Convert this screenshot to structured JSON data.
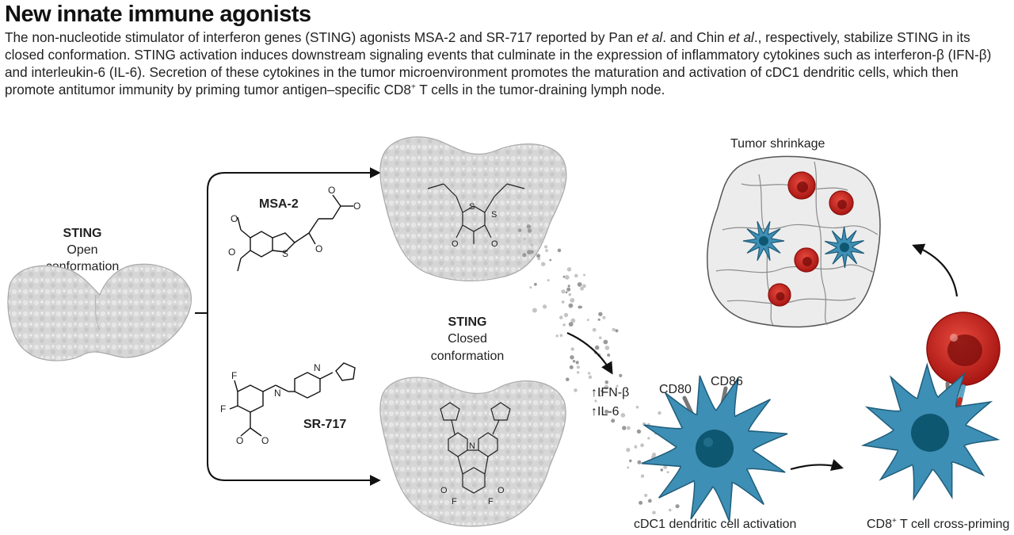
{
  "title": "New innate immune agonists",
  "caption": {
    "p1": "The non-nucleotide stimulator of interferon genes (STING) agonists MSA-2 and SR-717 reported by Pan ",
    "etal1": "et al",
    "p2": ". and Chin ",
    "etal2": "et al",
    "p3": "., respectively, stabilize STING in its closed conformation. STING activation induces downstream signaling events that culminate in the expression of inflammatory cytokines such as interferon-β (IFN-β) and interleukin-6 (IL-6). Secretion of these cytokines in the tumor microenvironment promotes the maturation and activation of cDC1 dendritic cells, which then promote antitumor immunity by priming tumor antigen–specific CD8",
    "sup": "+",
    "p4": " T cells in the tumor-draining lymph node."
  },
  "labels": {
    "sting_open": {
      "line1": "STING",
      "line2": "Open",
      "line3": "conformation"
    },
    "msa2": "MSA-2",
    "sr717": "SR-717",
    "sting_closed": {
      "line1": "STING",
      "line2": "Closed",
      "line3": "conformation"
    },
    "ifn": "↑IFN-β",
    "il6": "↑IL-6",
    "cd80": "CD80",
    "cd86": "CD86",
    "dc_activation": "cDC1 dendritic cell activation",
    "tcell_priming_a": "CD8",
    "tcell_priming_sup": "+",
    "tcell_priming_b": " T cell cross-priming",
    "tumor": "Tumor shrinkage",
    "atoms": {
      "S": "S",
      "O": "O",
      "N": "N",
      "F": "F"
    }
  },
  "colors": {
    "protein": "#d4d4d4",
    "protein_edge": "#a8a8a8",
    "dendritic": "#3e8fb6",
    "dendritic_dark": "#1f5d7a",
    "nucleus": "#0e5771",
    "tcell_red": "#cc2a24",
    "tumor_fill": "#ececec",
    "arrow": "#111111"
  }
}
